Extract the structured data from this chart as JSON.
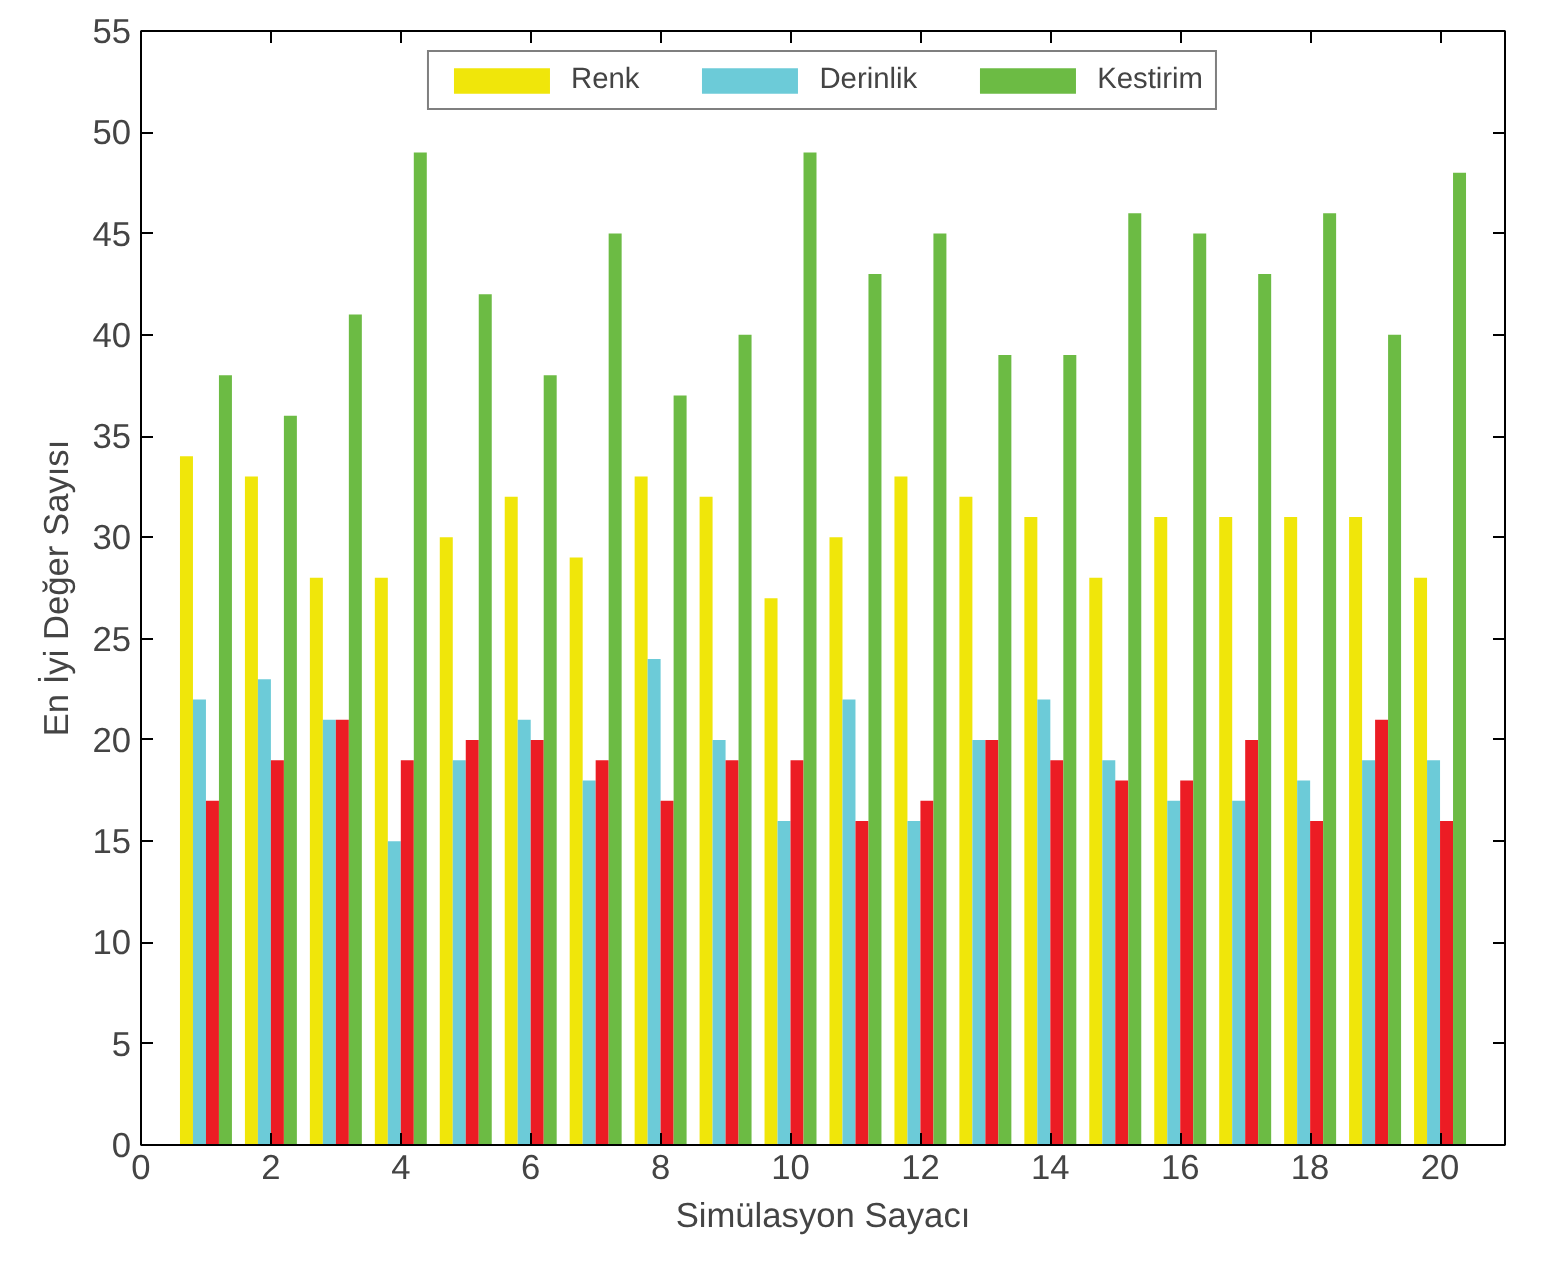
{
  "chart_data": {
    "type": "bar",
    "xlabel": "Simülasyon Sayacı",
    "ylabel": "En İyi Değer Sayısı",
    "x": [
      1,
      2,
      3,
      4,
      5,
      6,
      7,
      8,
      9,
      10,
      11,
      12,
      13,
      14,
      15,
      16,
      17,
      18,
      19,
      20
    ],
    "series": [
      {
        "name": "Renk",
        "color": "#f0e60a",
        "values": [
          34,
          33,
          28,
          28,
          30,
          32,
          29,
          33,
          32,
          27,
          30,
          33,
          32,
          31,
          28,
          31,
          31,
          31,
          31,
          28
        ]
      },
      {
        "name": "Derinlik",
        "color": "#6ccbd8",
        "values": [
          22,
          23,
          21,
          15,
          19,
          21,
          18,
          24,
          20,
          16,
          22,
          16,
          20,
          22,
          19,
          17,
          17,
          18,
          19,
          19
        ]
      },
      {
        "color": "#ec1c24",
        "values": [
          17,
          19,
          21,
          19,
          20,
          20,
          19,
          17,
          19,
          19,
          16,
          17,
          20,
          19,
          18,
          18,
          20,
          16,
          21,
          16
        ]
      },
      {
        "name": "Kestirim",
        "color": "#6cbb44",
        "values": [
          38,
          36,
          41,
          49,
          42,
          38,
          45,
          37,
          40,
          49,
          43,
          45,
          39,
          39,
          46,
          45,
          43,
          46,
          40,
          48
        ]
      }
    ],
    "xlim": [
      0,
      21
    ],
    "xticks": [
      0,
      2,
      4,
      6,
      8,
      10,
      12,
      14,
      16,
      18,
      20
    ],
    "ylim": [
      0,
      55
    ],
    "yticks": [
      0,
      5,
      10,
      15,
      20,
      25,
      30,
      35,
      40,
      45,
      50,
      55
    ],
    "grid": false,
    "legend": "top"
  }
}
